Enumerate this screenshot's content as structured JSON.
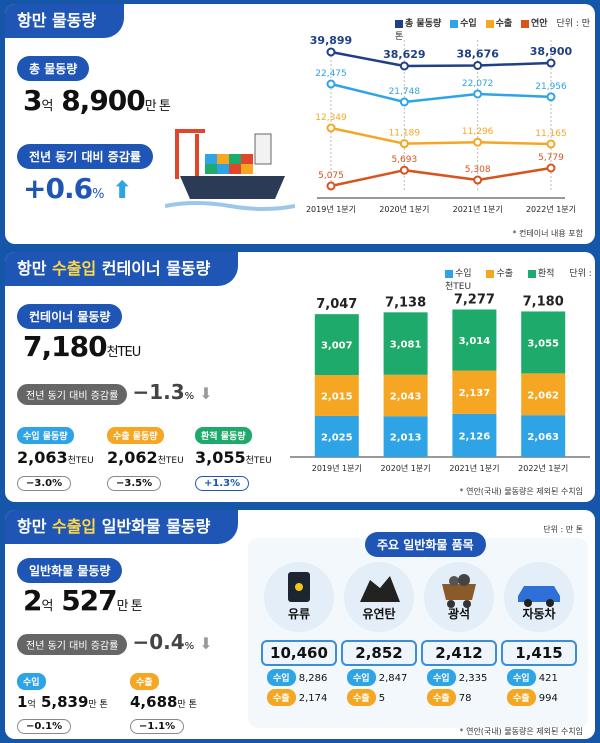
{
  "colors": {
    "navy": "#1f55b5",
    "blue": "#2ea3e6",
    "orange": "#f5a623",
    "green": "#1daa6a",
    "red": "#d9531e",
    "total_line": "#1f3f86"
  },
  "port": {
    "title": "항만 물동량",
    "total_label": "총 물동량",
    "total_num_a": "3",
    "total_unit_a": "억",
    "total_num_b": "8,900",
    "total_unit_b": "만 톤",
    "yoy_label": "전년 동기 대비 증감률",
    "yoy_value": "+0.6",
    "yoy_pct": "%",
    "legend": [
      "총 물동량",
      "수입",
      "수출",
      "연안"
    ],
    "unit": "단위 : 만 톤",
    "footnote": "* 컨테이너 내용 포함"
  },
  "container": {
    "title_a": "항만 ",
    "title_hl": "수출입",
    "title_b": " 컨테이너 물동량",
    "total_label": "컨테이너 물동량",
    "total_value": "7,180",
    "total_unit": "천TEU",
    "yoy_label": "전년 동기 대비 증감률",
    "yoy_value": "−1.3",
    "yoy_pct": "%",
    "legend": [
      "수입",
      "수출",
      "환적"
    ],
    "unit": "단위 : 천TEU",
    "footnote": "* 연안(국내) 물동량은 제외된 수치임",
    "sub": [
      {
        "label": "수입 물동량",
        "value": "2,063",
        "unit": "천TEU",
        "change": "−3.0",
        "pct": "%"
      },
      {
        "label": "수출 물동량",
        "value": "2,062",
        "unit": "천TEU",
        "change": "−3.5",
        "pct": "%"
      },
      {
        "label": "환적 물동량",
        "value": "3,055",
        "unit": "천TEU",
        "change": "+1.3",
        "pct": "%"
      }
    ]
  },
  "general": {
    "title_a": "항만 ",
    "title_hl": "수출입",
    "title_b": " 일반화물 물동량",
    "unit": "단위 : 만 톤",
    "total_label": "일반화물 물동량",
    "total_num_a": "2",
    "total_unit_a": "억",
    "total_num_b": "527",
    "total_unit_b": "만 톤",
    "yoy_label": "전년 동기 대비 증감률",
    "yoy_value": "−0.4",
    "yoy_pct": "%",
    "import_label": "수입",
    "import_a": "1",
    "import_ua": "억",
    "import_b": "5,839",
    "import_ub": "만 톤",
    "import_change": "−0.1",
    "import_pct": "%",
    "export_label": "수출",
    "export_value": "4,688",
    "export_unit": "만 톤",
    "export_change": "−1.1",
    "export_pct": "%",
    "items_header": "주요 일반화물 품목",
    "in_label": "수입",
    "out_label": "수출",
    "footnote": "* 연안(국내) 물동량은 제외된 수치임",
    "items": [
      {
        "name": "유류",
        "value": "10,460",
        "import": "8,286",
        "export": "2,174"
      },
      {
        "name": "유연탄",
        "value": "2,852",
        "import": "2,847",
        "export": "5"
      },
      {
        "name": "광석",
        "value": "2,412",
        "import": "2,335",
        "export": "78"
      },
      {
        "name": "자동차",
        "value": "1,415",
        "import": "421",
        "export": "994"
      }
    ]
  },
  "chart_data": [
    {
      "type": "line",
      "categories": [
        "2019년 1분기",
        "2020년 1분기",
        "2021년 1분기",
        "2022년 1분기"
      ],
      "series": [
        {
          "name": "총 물동량",
          "values": [
            39899,
            38629,
            38676,
            38900
          ]
        },
        {
          "name": "수입",
          "values": [
            22475,
            21748,
            22072,
            21956
          ]
        },
        {
          "name": "수출",
          "values": [
            12349,
            11189,
            11296,
            11165
          ]
        },
        {
          "name": "연안",
          "values": [
            5075,
            5693,
            5308,
            5779
          ]
        }
      ],
      "labels": [
        [
          "39,899",
          "38,629",
          "38,676",
          "38,900"
        ],
        [
          "22,475",
          "21,748",
          "22,072",
          "21,956"
        ],
        [
          "12,349",
          "11,189",
          "11,296",
          "11,165"
        ],
        [
          "5,075",
          "5,693",
          "5,308",
          "5,779"
        ]
      ]
    },
    {
      "type": "bar",
      "stacked": true,
      "categories": [
        "2019년 1분기",
        "2020년 1분기",
        "2021년 1분기",
        "2022년 1분기"
      ],
      "totals": [
        "7,047",
        "7,138",
        "7,277",
        "7,180"
      ],
      "series": [
        {
          "name": "수입",
          "values": [
            2025,
            2013,
            2126,
            2063
          ],
          "labels": [
            "2,025",
            "2,013",
            "2,126",
            "2,063"
          ]
        },
        {
          "name": "수출",
          "values": [
            2015,
            2043,
            2137,
            2062
          ],
          "labels": [
            "2,015",
            "2,043",
            "2,137",
            "2,062"
          ]
        },
        {
          "name": "환적",
          "values": [
            3007,
            3081,
            3014,
            3055
          ],
          "labels": [
            "3,007",
            "3,081",
            "3,014",
            "3,055"
          ]
        }
      ]
    }
  ]
}
